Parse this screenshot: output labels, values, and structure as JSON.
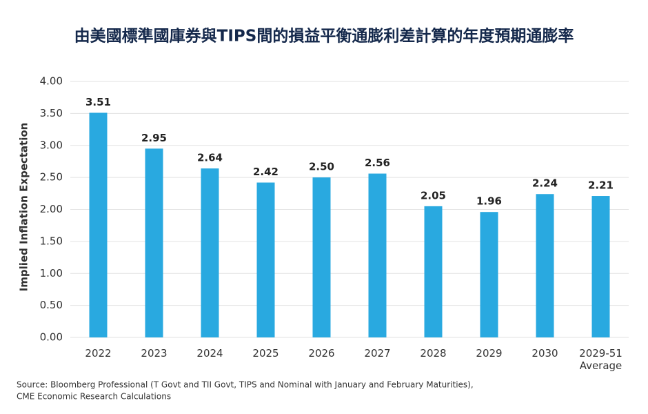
{
  "chart_data": {
    "type": "bar",
    "title": "由美國標準國庫券與TIPS間的損益平衡通膨利差計算的年度預期通膨率",
    "y_label": "Implied Inflation Expectation",
    "categories": [
      "2022",
      "2023",
      "2024",
      "2025",
      "2026",
      "2027",
      "2028",
      "2029",
      "2030",
      "2029-51\nAverage"
    ],
    "values": [
      3.51,
      2.95,
      2.64,
      2.42,
      2.5,
      2.56,
      2.05,
      1.96,
      2.24,
      2.21
    ],
    "value_labels": [
      "3.51",
      "2.95",
      "2.64",
      "2.42",
      "2.50",
      "2.56",
      "2.05",
      "1.96",
      "2.24",
      "2.21"
    ],
    "color": "#29a9e0",
    "ylim": [
      0,
      4
    ],
    "yticks": [
      {
        "value": 0,
        "label": "0.00"
      },
      {
        "value": 0.5,
        "label": "0.50"
      },
      {
        "value": 1,
        "label": "1.00"
      },
      {
        "value": 1.5,
        "label": "1.50"
      },
      {
        "value": 2,
        "label": "2.00"
      },
      {
        "value": 2.5,
        "label": "2.50"
      },
      {
        "value": 3,
        "label": "3.00"
      },
      {
        "value": 3.5,
        "label": "3.50"
      },
      {
        "value": 4,
        "label": "4.00"
      }
    ],
    "grid": true,
    "source": [
      "Source: Bloomberg Professional (T Govt and TII Govt, TIPS and Nominal with January and February Maturities),",
      "CME Economic Research Calculations"
    ]
  }
}
